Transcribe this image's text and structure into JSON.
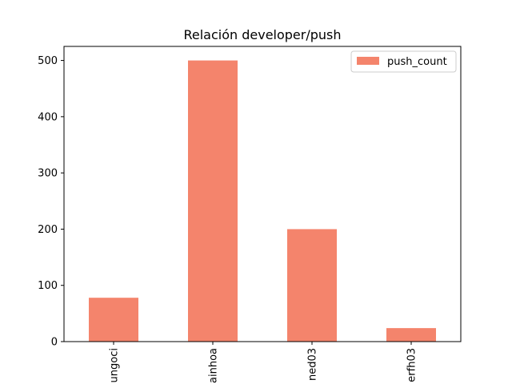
{
  "chart_data": {
    "type": "bar",
    "title": "Relación developer/push",
    "xlabel": "",
    "ylabel": "",
    "categories": [
      "ungoci",
      "ainhoa",
      "ned03",
      "erfh03"
    ],
    "series": [
      {
        "name": "push_count",
        "values": [
          78,
          500,
          200,
          24
        ]
      }
    ],
    "ylim": [
      0,
      525
    ],
    "yticks": [
      0,
      100,
      200,
      300,
      400,
      500
    ],
    "grid": false,
    "legend_position": "top-right",
    "colors": {
      "bar": "#f4846c",
      "axis": "#000000"
    }
  }
}
